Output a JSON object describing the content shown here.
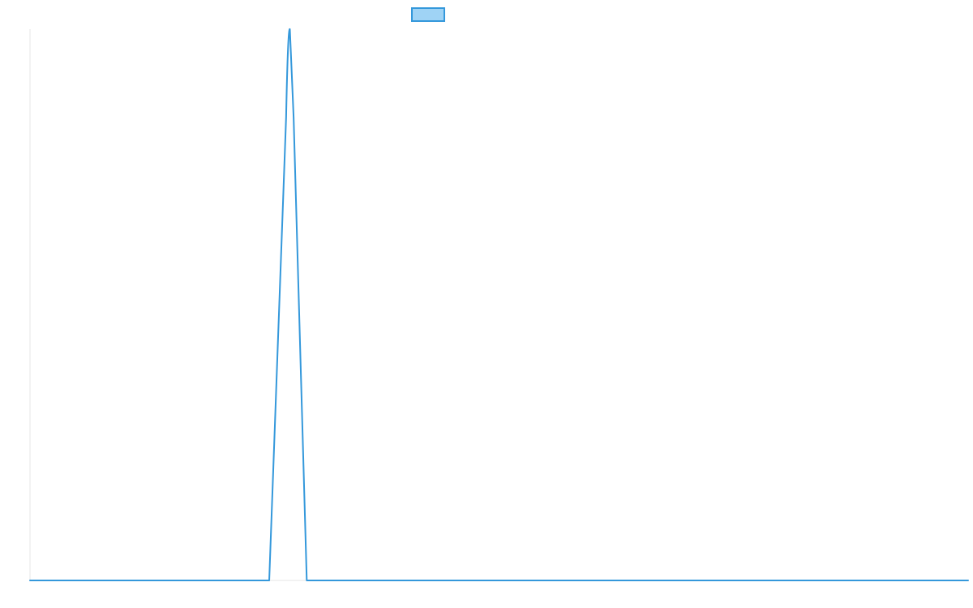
{
  "chart_data": {
    "type": "line",
    "title": "",
    "xlabel": "",
    "ylabel": "",
    "grid": false,
    "legend": {
      "position": "top-center",
      "entries": [
        {
          "label": "",
          "color": "#3498db",
          "fill": "#9fd3f5"
        }
      ]
    },
    "series": [
      {
        "color": "#3498db",
        "points": [
          [
            0,
            0
          ],
          [
            25.5,
            0
          ],
          [
            27.3,
            0.84
          ],
          [
            27.7,
            1
          ],
          [
            28.1,
            0.84
          ],
          [
            29.5,
            0
          ],
          [
            100,
            0
          ]
        ]
      }
    ],
    "xlim": [
      0,
      100
    ],
    "ylim": [
      0,
      1
    ]
  }
}
